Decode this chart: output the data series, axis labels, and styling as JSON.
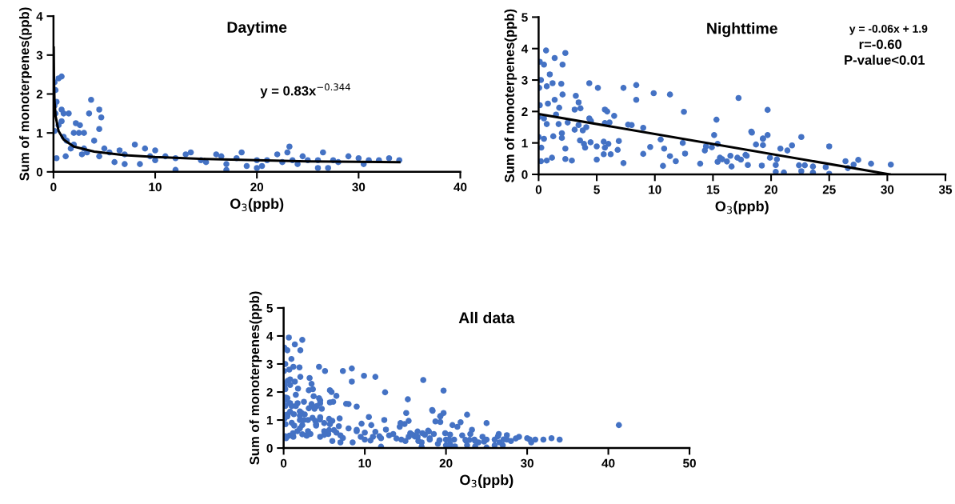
{
  "chart_data": [
    {
      "type": "scatter",
      "title": "Daytime",
      "xlabel": "O$_{3}$(ppb)",
      "ylabel": "Sum of monoterpenes(ppb)",
      "annotations": [
        "y = 0.83x$^{−0.344}$"
      ],
      "xlim": [
        0,
        40
      ],
      "ylim": [
        0,
        4
      ],
      "xticks": [
        0,
        10,
        20,
        30,
        40
      ],
      "yticks": [
        0,
        1,
        2,
        3,
        4
      ],
      "grid": false,
      "legend": false,
      "series": [
        {
          "color": "#4472c4",
          "marker": "circle",
          "x": [
            0.1,
            0.2,
            0.1,
            0.2,
            0.3,
            0.5,
            0.8,
            0.1,
            0.3,
            1.2,
            0.5,
            0.8,
            1,
            1.5,
            0.8,
            1.3,
            2,
            2.5,
            3,
            2.2,
            2.6,
            3.5,
            3,
            3.3,
            4.5,
            4,
            4.5,
            3.7,
            4.5,
            4.7,
            2.8,
            1.7,
            5.5,
            6.5,
            7,
            8,
            9,
            9.5,
            8.5,
            10,
            10,
            11,
            12,
            13,
            13.5,
            14.5,
            15,
            16,
            16.5,
            17,
            18,
            18.5,
            19,
            20,
            20.5,
            21,
            22,
            22.5,
            23,
            23.2,
            23.5,
            24,
            24.5,
            25,
            26,
            26.5,
            27,
            27.5,
            28,
            29,
            30,
            30.5,
            31,
            32,
            33,
            34,
            12,
            17,
            20,
            26,
            7,
            6,
            2,
            1,
            5
          ],
          "values": [
            2.3,
            2.1,
            1.7,
            1.5,
            1.8,
            2.4,
            2.45,
            1.05,
            0.35,
            0.4,
            1.2,
            1.3,
            1.5,
            1.5,
            1.6,
            0.8,
            1.0,
            1.0,
            1.0,
            1.25,
            1.2,
            1.5,
            0.6,
            0.5,
            1.1,
            0.8,
            0.4,
            1.85,
            1.6,
            1.4,
            0.45,
            0.6,
            0.5,
            0.55,
            0.45,
            0.7,
            0.6,
            0.4,
            0.2,
            0.55,
            0.3,
            0.4,
            0.35,
            0.45,
            0.5,
            0.3,
            0.25,
            0.45,
            0.4,
            0.2,
            0.35,
            0.5,
            0.15,
            0.3,
            0.15,
            0.3,
            0.45,
            0.25,
            0.5,
            0.65,
            0.3,
            0.2,
            0.4,
            0.3,
            0.3,
            0.5,
            0.1,
            0.3,
            0.25,
            0.4,
            0.35,
            0.2,
            0.3,
            0.3,
            0.35,
            0.3,
            0.05,
            0.05,
            0.1,
            0.1,
            0.2,
            0.25,
            0.7,
            0.9,
            0.6
          ]
        },
        {
          "type": "line",
          "marker": "none",
          "color": "#000000",
          "x": [
            0.02,
            0.05,
            0.1,
            0.2,
            0.5,
            1,
            2,
            4,
            7,
            10,
            15,
            20,
            25,
            30,
            34
          ],
          "values": [
            3.19,
            2.33,
            1.83,
            1.44,
            1.05,
            0.83,
            0.65,
            0.52,
            0.43,
            0.38,
            0.33,
            0.3,
            0.27,
            0.26,
            0.25
          ]
        }
      ]
    },
    {
      "type": "scatter",
      "title": "Nighttime",
      "xlabel": "O$_{3}$(ppb)",
      "ylabel": "Sum of monoterpenes(ppb)",
      "annotations": [
        "y = -0.06x + 1.9",
        "r=-0.60",
        "P-value<0.01"
      ],
      "xlim": [
        0,
        35
      ],
      "ylim": [
        0,
        5
      ],
      "xticks": [
        0,
        5,
        10,
        15,
        20,
        25,
        30,
        35
      ],
      "yticks": [
        0,
        1,
        2,
        3,
        4,
        5
      ],
      "grid": false,
      "legend": false,
      "series": [
        {
          "color": "#4472c4",
          "marker": "circle",
          "x": [
            0.64,
            2.3,
            1.38,
            0.1,
            0.46,
            2.06,
            0.96,
            0,
            0.2,
            1.2,
            1.95,
            0.7,
            0.05,
            4.36,
            5.1,
            7.3,
            8.4,
            8.4,
            9.9,
            11.3,
            17.2,
            12.5,
            19.7,
            2.06,
            1.38,
            0.8,
            0.1,
            3.2,
            3.44,
            3.1,
            3.6,
            1.77,
            5.7,
            5.9,
            6.5,
            4.36,
            4.5,
            1.5,
            0.46,
            0,
            0.7,
            1.72,
            2.5,
            3.44,
            4.1,
            5.7,
            6.1,
            7.7,
            8.0,
            9.0,
            3.1,
            3.8,
            2.0,
            2.0,
            0.46,
            1.26,
            0,
            10.5,
            12.4,
            3.56,
            3.9,
            4.47,
            5.0,
            5.6,
            6.0,
            6.9,
            4.0,
            5.7,
            6.8,
            9.6,
            10.8,
            14.3,
            14.4,
            14.9,
            15.1,
            15.3,
            15.4,
            18.3,
            18.7,
            19.3,
            19.3,
            19.7,
            20.8,
            0.23,
            2.3,
            0.2,
            0.7,
            1.15,
            2.3,
            2.86,
            5.0,
            5.6,
            6.2,
            7.3,
            9.0,
            10.7,
            11.3,
            11.8,
            12.6,
            13.9,
            15.4,
            15.6,
            16.2,
            16.5,
            16.6,
            17.1,
            17.4,
            17.8,
            18.0,
            19.2,
            19.9,
            20.4,
            20.4,
            18.35,
            19.3,
            22.6,
            21.8,
            21.4,
            25.0,
            20.5,
            21.1,
            22.4,
            22.6,
            22.9,
            23.6,
            23.6,
            24.7,
            25.0,
            26.4,
            26.6,
            27.1,
            27.5,
            28.6,
            30.3,
            17.9,
            15.8
          ],
          "values": [
            3.94,
            3.86,
            3.7,
            3.58,
            3.49,
            3.49,
            3.18,
            3.0,
            3.0,
            2.9,
            2.88,
            2.8,
            2.75,
            2.9,
            2.75,
            2.75,
            2.84,
            2.37,
            2.58,
            2.54,
            2.43,
            1.99,
            2.05,
            2.54,
            2.37,
            2.25,
            2.2,
            2.5,
            2.29,
            2.06,
            2.1,
            2.12,
            2.06,
            2.0,
            1.86,
            1.78,
            1.7,
            1.9,
            1.78,
            1.82,
            1.6,
            1.6,
            1.65,
            1.57,
            1.5,
            1.63,
            1.65,
            1.58,
            1.57,
            1.48,
            1.42,
            1.4,
            1.31,
            1.16,
            1.13,
            1.21,
            1.19,
            1.11,
            1.0,
            1.08,
            0.97,
            1.02,
            0.89,
            1.04,
            0.97,
            1.06,
            0.85,
            0.85,
            0.78,
            0.87,
            0.82,
            0.76,
            0.89,
            0.86,
            1.25,
            1.74,
            0.97,
            1.36,
            0.95,
            0.93,
            1.13,
            1.25,
            0.82,
            0.85,
            0.82,
            0.42,
            0.44,
            0.53,
            0.49,
            0.44,
            0.47,
            0.64,
            0.64,
            0.36,
            0.65,
            0.27,
            0.58,
            0.42,
            0.66,
            0.34,
            0.4,
            0.53,
            0.41,
            0.59,
            0.25,
            0.53,
            0.47,
            0.62,
            0.3,
            0.28,
            0.53,
            0.3,
            0.08,
            1.33,
            1.14,
            1.19,
            0.92,
            0.76,
            0.89,
            0.48,
            0.06,
            0.29,
            0.1,
            0.29,
            0.25,
            0.06,
            0.23,
            0.02,
            0.42,
            0.2,
            0.31,
            0.46,
            0.34,
            0.31,
            0.59,
            0.48
          ]
        },
        {
          "type": "line",
          "marker": "none",
          "color": "#000000",
          "x": [
            0,
            30.2
          ],
          "values": [
            1.92,
            0
          ]
        }
      ]
    },
    {
      "type": "scatter",
      "title": "All data",
      "xlabel": "O$_{3}$(ppb)",
      "ylabel": "Sum of monoterpenes(ppb)",
      "xlim": [
        0,
        50
      ],
      "ylim": [
        0,
        5
      ],
      "xticks": [
        0,
        10,
        20,
        30,
        40,
        50
      ],
      "yticks": [
        0,
        1,
        2,
        3,
        4,
        5
      ],
      "grid": false,
      "legend": false,
      "marker": "circle",
      "series": [
        {
          "color": "#4472c4",
          "x": [
            0.1,
            0.2,
            0.1,
            0.2,
            0.3,
            0.5,
            0.8,
            0.1,
            0.3,
            1.2,
            0.5,
            0.8,
            1,
            1.5,
            0.8,
            1.3,
            2,
            2.5,
            3,
            2.2,
            2.6,
            3.5,
            3,
            3.3,
            4.5,
            4,
            4.5,
            3.7,
            4.5,
            4.7,
            2.8,
            1.7,
            5.5,
            6.5,
            7,
            8,
            9,
            9.5,
            8.5,
            10,
            10,
            11,
            12,
            13,
            13.5,
            14.5,
            15,
            16,
            16.5,
            17,
            18,
            18.5,
            19,
            20,
            20.5,
            21,
            22,
            22.5,
            23,
            23.2,
            23.5,
            24,
            24.5,
            25,
            26,
            26.5,
            27,
            27.5,
            28,
            29,
            30,
            30.5,
            31,
            32,
            33,
            34,
            12,
            17,
            20,
            26,
            7,
            6,
            2,
            1,
            5,
            0.64,
            2.3,
            1.38,
            0.1,
            0.46,
            2.06,
            0.96,
            0,
            0.2,
            1.2,
            1.95,
            0.7,
            0.05,
            4.36,
            5.1,
            7.3,
            8.4,
            8.4,
            9.9,
            11.3,
            17.2,
            12.5,
            19.7,
            2.06,
            1.38,
            0.8,
            0.1,
            3.2,
            3.44,
            3.1,
            3.6,
            1.77,
            5.7,
            5.9,
            6.5,
            4.36,
            4.5,
            1.5,
            0.46,
            0,
            0.7,
            1.72,
            2.5,
            3.44,
            4.1,
            5.7,
            6.1,
            7.7,
            8.0,
            9.0,
            3.1,
            3.8,
            2.0,
            2.0,
            0.46,
            1.26,
            0,
            10.5,
            12.4,
            3.56,
            3.9,
            4.47,
            5.0,
            5.6,
            6.0,
            6.9,
            4.0,
            5.7,
            6.8,
            9.6,
            10.8,
            14.3,
            14.4,
            14.9,
            15.1,
            15.3,
            15.4,
            18.3,
            18.7,
            19.3,
            19.3,
            19.7,
            20.8,
            0.23,
            2.3,
            0.2,
            0.7,
            1.15,
            2.3,
            2.86,
            5.0,
            5.6,
            6.2,
            7.3,
            9.0,
            10.7,
            11.3,
            11.8,
            12.6,
            13.9,
            15.4,
            15.6,
            16.2,
            16.5,
            16.6,
            17.1,
            17.4,
            17.8,
            18.0,
            19.2,
            19.9,
            20.4,
            20.4,
            18.35,
            19.3,
            22.6,
            21.8,
            21.4,
            25.0,
            20.5,
            21.1,
            22.4,
            22.6,
            22.9,
            23.6,
            23.6,
            24.7,
            25.0,
            26.4,
            26.6,
            27.1,
            27.5,
            28.6,
            30.3,
            17.9,
            15.8,
            41.3
          ],
          "values": [
            2.3,
            2.1,
            1.7,
            1.5,
            1.8,
            2.4,
            2.45,
            1.05,
            0.35,
            0.4,
            1.2,
            1.3,
            1.5,
            1.5,
            1.6,
            0.8,
            1.0,
            1.0,
            1.0,
            1.25,
            1.2,
            1.5,
            0.6,
            0.5,
            1.1,
            0.8,
            0.4,
            1.85,
            1.6,
            1.4,
            0.45,
            0.6,
            0.5,
            0.55,
            0.45,
            0.7,
            0.6,
            0.4,
            0.2,
            0.55,
            0.3,
            0.4,
            0.35,
            0.45,
            0.5,
            0.3,
            0.25,
            0.45,
            0.4,
            0.2,
            0.35,
            0.5,
            0.15,
            0.3,
            0.15,
            0.3,
            0.45,
            0.25,
            0.5,
            0.65,
            0.3,
            0.2,
            0.4,
            0.3,
            0.3,
            0.5,
            0.1,
            0.3,
            0.25,
            0.4,
            0.35,
            0.2,
            0.3,
            0.3,
            0.35,
            0.3,
            0.05,
            0.05,
            0.1,
            0.1,
            0.2,
            0.25,
            0.7,
            0.9,
            0.6,
            3.94,
            3.86,
            3.7,
            3.58,
            3.49,
            3.49,
            3.18,
            3.0,
            3.0,
            2.9,
            2.88,
            2.8,
            2.75,
            2.9,
            2.75,
            2.75,
            2.84,
            2.37,
            2.58,
            2.54,
            2.43,
            1.99,
            2.05,
            2.54,
            2.37,
            2.25,
            2.2,
            2.5,
            2.29,
            2.06,
            2.1,
            2.12,
            2.06,
            2.0,
            1.86,
            1.78,
            1.7,
            1.9,
            1.78,
            1.82,
            1.6,
            1.6,
            1.65,
            1.57,
            1.5,
            1.63,
            1.65,
            1.58,
            1.57,
            1.48,
            1.42,
            1.4,
            1.31,
            1.16,
            1.13,
            1.21,
            1.19,
            1.11,
            1.0,
            1.08,
            0.97,
            1.02,
            0.89,
            1.04,
            0.97,
            1.06,
            0.85,
            0.85,
            0.78,
            0.87,
            0.82,
            0.76,
            0.89,
            0.86,
            1.25,
            1.74,
            0.97,
            1.36,
            0.95,
            0.93,
            1.13,
            1.25,
            0.82,
            0.85,
            0.82,
            0.42,
            0.44,
            0.53,
            0.49,
            0.44,
            0.47,
            0.64,
            0.64,
            0.36,
            0.65,
            0.27,
            0.58,
            0.42,
            0.66,
            0.34,
            0.4,
            0.53,
            0.41,
            0.59,
            0.25,
            0.53,
            0.47,
            0.62,
            0.3,
            0.28,
            0.53,
            0.3,
            0.08,
            1.33,
            1.14,
            1.19,
            0.92,
            0.76,
            0.89,
            0.48,
            0.06,
            0.29,
            0.1,
            0.29,
            0.25,
            0.06,
            0.23,
            0.02,
            0.42,
            0.2,
            0.31,
            0.46,
            0.34,
            0.31,
            0.59,
            0.48,
            0.82
          ]
        }
      ]
    }
  ]
}
